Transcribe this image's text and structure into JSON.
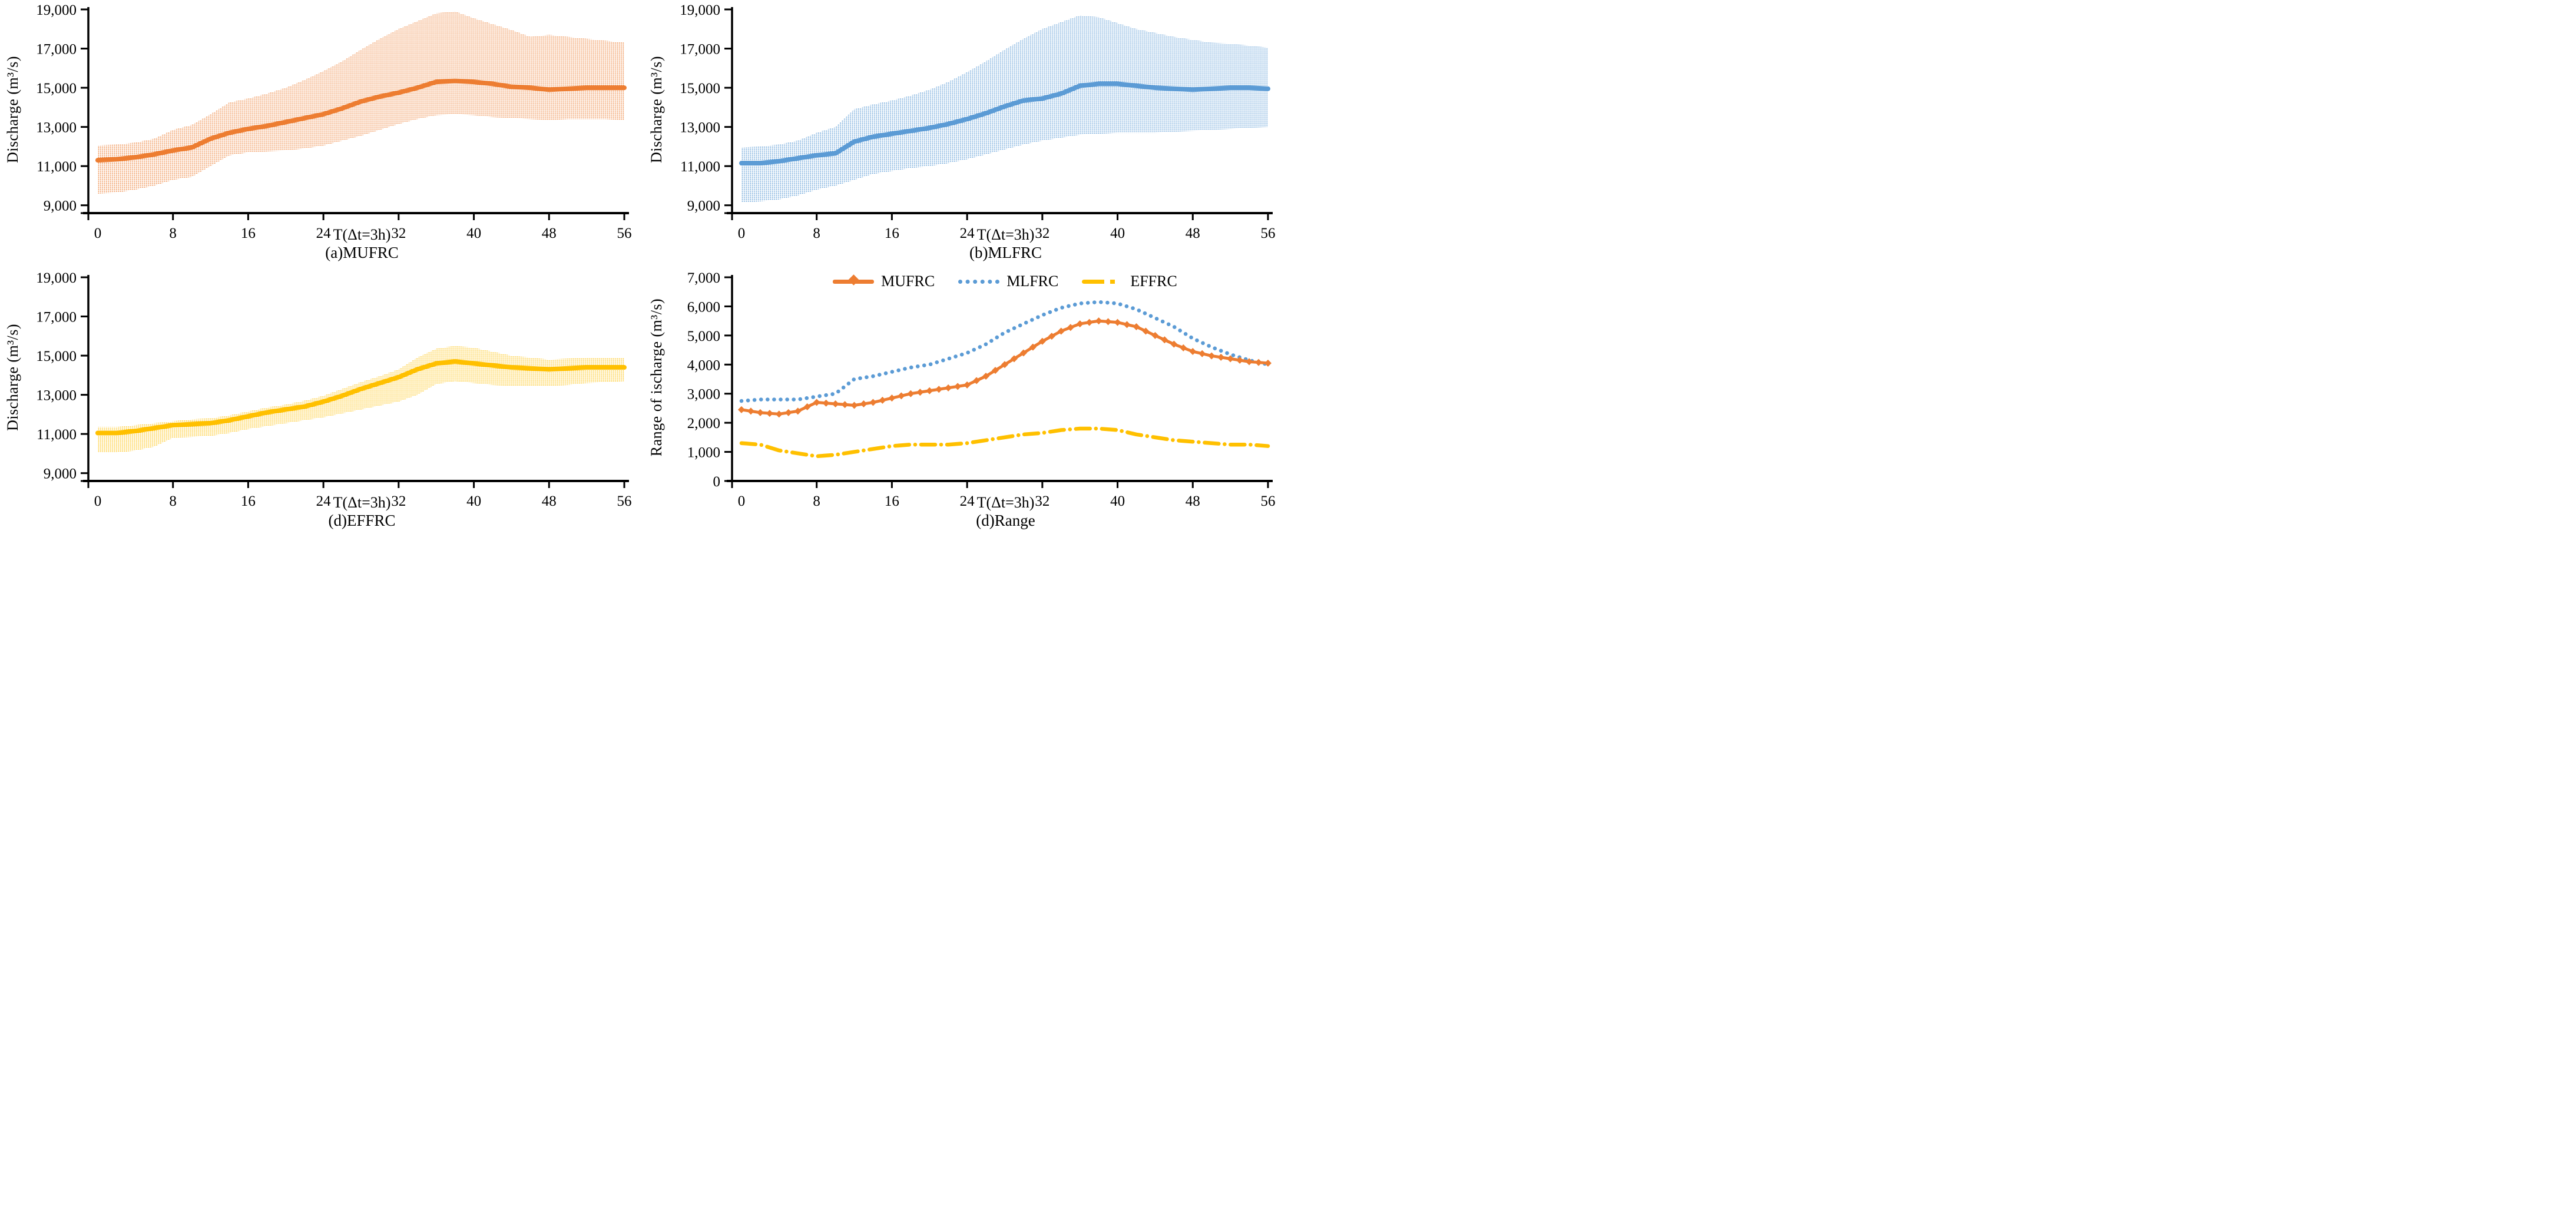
{
  "page": {
    "background": "#FFFFFF"
  },
  "colors": {
    "mufrc_orange": "#ED7D31",
    "mlfrc_blue": "#5B9BD5",
    "effrc_yellow": "#FFC000",
    "axis": "#000000"
  },
  "labels": {
    "x_axis": "T(Δt=3h)",
    "y_axis_discharge": "Discharge (m³/s)",
    "y_axis_range": "Range of ischarge (m³/s)",
    "caption_a": "(a)MUFRC",
    "caption_b": "(b)MLFRC",
    "caption_c": "(d)EFFRC",
    "caption_d": "(d)Range"
  },
  "legend": {
    "items": [
      {
        "label": "MUFRC",
        "series": "mufrc",
        "marker": "orange-solid-line-with-diamond"
      },
      {
        "label": "MLFRC",
        "series": "mlfrc",
        "marker": "blue-dotted-line"
      },
      {
        "label": "EFFRC",
        "series": "effrc",
        "marker": "yellow-dash-dot-line"
      }
    ]
  },
  "chart_data": [
    {
      "panel": "a",
      "type": "area",
      "name": "MUFRC",
      "title": "(a)MUFRC",
      "xlabel": "T(Δt=3h)",
      "ylabel": "Discharge (m³/s)",
      "color": "#ED7D31",
      "band_fill": "dot-pattern",
      "ylim": [
        9000,
        19000
      ],
      "axis_cross_y": 8600,
      "xlim": [
        -1,
        56.5
      ],
      "grid": false,
      "yticks": {
        "values": [
          9000,
          11000,
          13000,
          15000,
          17000,
          19000
        ],
        "labels": [
          "9,000",
          "11,000",
          "13,000",
          "15,000",
          "17,000",
          "19,000"
        ]
      },
      "xticks": {
        "values": [
          0,
          8,
          16,
          24,
          32,
          40,
          48,
          56
        ],
        "labels": [
          "0",
          "8",
          "16",
          "24",
          "32",
          "40",
          "48",
          "56"
        ]
      },
      "x": [
        0,
        2,
        4,
        6,
        8,
        10,
        12,
        14,
        16,
        18,
        20,
        22,
        24,
        26,
        28,
        30,
        32,
        34,
        36,
        38,
        40,
        42,
        44,
        46,
        48,
        50,
        52,
        54,
        56
      ],
      "median": [
        11300,
        11350,
        11450,
        11600,
        11800,
        11950,
        12400,
        12700,
        12900,
        13050,
        13250,
        13450,
        13650,
        13950,
        14300,
        14550,
        14750,
        15000,
        15300,
        15350,
        15300,
        15200,
        15050,
        15000,
        14900,
        14950,
        15000,
        15000,
        15000
      ],
      "upper": [
        12050,
        12100,
        12200,
        12400,
        12850,
        13100,
        13650,
        14250,
        14450,
        14700,
        15000,
        15400,
        15850,
        16350,
        16950,
        17500,
        18000,
        18400,
        18800,
        18900,
        18550,
        18250,
        17950,
        17600,
        17700,
        17600,
        17500,
        17400,
        17300
      ],
      "lower": [
        9600,
        9650,
        9800,
        10000,
        10300,
        10450,
        11000,
        11550,
        11700,
        11750,
        11800,
        11900,
        12050,
        12300,
        12550,
        12850,
        13150,
        13400,
        13600,
        13650,
        13600,
        13500,
        13450,
        13400,
        13350,
        13400,
        13400,
        13400,
        13350
      ]
    },
    {
      "panel": "b",
      "type": "area",
      "name": "MLFRC",
      "title": "(b)MLFRC",
      "xlabel": "T(Δt=3h)",
      "ylabel": "Discharge (m³/s)",
      "color": "#5B9BD5",
      "band_fill": "dot-pattern",
      "ylim": [
        9000,
        19000
      ],
      "axis_cross_y": 8600,
      "xlim": [
        -1,
        56.5
      ],
      "grid": false,
      "yticks": {
        "values": [
          9000,
          11000,
          13000,
          15000,
          17000,
          19000
        ],
        "labels": [
          "9,000",
          "11,000",
          "13,000",
          "15,000",
          "17,000",
          "19,000"
        ]
      },
      "xticks": {
        "values": [
          0,
          8,
          16,
          24,
          32,
          40,
          48,
          56
        ],
        "labels": [
          "0",
          "8",
          "16",
          "24",
          "32",
          "40",
          "48",
          "56"
        ]
      },
      "x": [
        0,
        2,
        4,
        6,
        8,
        10,
        12,
        14,
        16,
        18,
        20,
        22,
        24,
        26,
        28,
        30,
        32,
        34,
        36,
        38,
        40,
        42,
        44,
        46,
        48,
        50,
        52,
        54,
        56
      ],
      "median": [
        11150,
        11150,
        11250,
        11400,
        11550,
        11650,
        12250,
        12500,
        12650,
        12800,
        12950,
        13150,
        13400,
        13700,
        14050,
        14350,
        14450,
        14700,
        15100,
        15200,
        15200,
        15100,
        15000,
        14950,
        14900,
        14950,
        15000,
        15000,
        14950
      ],
      "upper": [
        11950,
        12000,
        12100,
        12300,
        12700,
        13000,
        13900,
        14150,
        14350,
        14600,
        14900,
        15300,
        15800,
        16350,
        16950,
        17500,
        18000,
        18350,
        18700,
        18600,
        18300,
        18000,
        17800,
        17600,
        17450,
        17300,
        17250,
        17150,
        17050
      ],
      "lower": [
        9150,
        9200,
        9300,
        9500,
        9800,
        10000,
        10300,
        10600,
        10750,
        10900,
        11000,
        11150,
        11350,
        11600,
        11850,
        12100,
        12300,
        12450,
        12600,
        12650,
        12700,
        12700,
        12700,
        12750,
        12800,
        12850,
        12900,
        12950,
        13000
      ]
    },
    {
      "panel": "c",
      "type": "area",
      "name": "EFFRC",
      "title": "(d)EFFRC",
      "xlabel": "T(Δt=3h)",
      "ylabel": "Discharge (m³/s)",
      "color": "#FFC000",
      "band_fill": "dot-pattern",
      "ylim": [
        9000,
        19000
      ],
      "axis_cross_y": 8600,
      "xlim": [
        -1,
        56.5
      ],
      "grid": false,
      "yticks": {
        "values": [
          9000,
          11000,
          13000,
          15000,
          17000,
          19000
        ],
        "labels": [
          "9,000",
          "11,000",
          "13,000",
          "15,000",
          "17,000",
          "19,000"
        ]
      },
      "xticks": {
        "values": [
          0,
          8,
          16,
          24,
          32,
          40,
          48,
          56
        ],
        "labels": [
          "0",
          "8",
          "16",
          "24",
          "32",
          "40",
          "48",
          "56"
        ]
      },
      "x": [
        0,
        2,
        4,
        6,
        8,
        10,
        12,
        14,
        16,
        18,
        20,
        22,
        24,
        26,
        28,
        30,
        32,
        34,
        36,
        38,
        40,
        42,
        44,
        46,
        48,
        50,
        52,
        54,
        56
      ],
      "median": [
        11050,
        11050,
        11150,
        11300,
        11450,
        11500,
        11550,
        11700,
        11900,
        12100,
        12250,
        12400,
        12650,
        12950,
        13300,
        13600,
        13900,
        14300,
        14600,
        14700,
        14600,
        14500,
        14400,
        14350,
        14300,
        14350,
        14400,
        14400,
        14400
      ],
      "upper": [
        11350,
        11350,
        11450,
        11550,
        11650,
        11750,
        11800,
        11950,
        12150,
        12350,
        12500,
        12700,
        12950,
        13300,
        13650,
        13950,
        14300,
        14900,
        15350,
        15500,
        15400,
        15200,
        15000,
        14900,
        14800,
        14850,
        14900,
        14900,
        14900
      ],
      "lower": [
        10050,
        10050,
        10150,
        10350,
        10800,
        10850,
        10900,
        11050,
        11250,
        11400,
        11550,
        11700,
        11850,
        12050,
        12250,
        12450,
        12650,
        13000,
        13550,
        13700,
        13600,
        13500,
        13450,
        13450,
        13450,
        13500,
        13600,
        13650,
        13700
      ]
    },
    {
      "panel": "d",
      "type": "line",
      "title": "(d)Range",
      "xlabel": "T(Δt=3h)",
      "ylabel": "Range of ischarge (m³/s)",
      "ylim": [
        0,
        7000
      ],
      "axis_cross_y": 0,
      "xlim": [
        -1,
        56.5
      ],
      "grid": false,
      "legend_position": "top-center",
      "yticks": {
        "values": [
          0,
          1000,
          2000,
          3000,
          4000,
          5000,
          6000,
          7000
        ],
        "labels": [
          "0",
          "1,000",
          "2,000",
          "3,000",
          "4,000",
          "5,000",
          "6,000",
          "7,000"
        ]
      },
      "xticks": {
        "values": [
          0,
          8,
          16,
          24,
          32,
          40,
          48,
          56
        ],
        "labels": [
          "0",
          "8",
          "16",
          "24",
          "32",
          "40",
          "48",
          "56"
        ]
      },
      "x": [
        0,
        2,
        4,
        6,
        8,
        10,
        12,
        14,
        16,
        18,
        20,
        22,
        24,
        26,
        28,
        30,
        32,
        34,
        36,
        38,
        40,
        42,
        44,
        46,
        48,
        50,
        52,
        54,
        56
      ],
      "series": [
        {
          "name": "MUFRC",
          "color": "#ED7D31",
          "style": "solid-diamond",
          "values": [
            2450,
            2350,
            2300,
            2400,
            2700,
            2650,
            2600,
            2700,
            2850,
            3000,
            3100,
            3200,
            3300,
            3600,
            4000,
            4400,
            4800,
            5150,
            5400,
            5500,
            5450,
            5300,
            5000,
            4700,
            4450,
            4300,
            4200,
            4100,
            4050
          ]
        },
        {
          "name": "MLFRC",
          "color": "#5B9BD5",
          "style": "dotted",
          "values": [
            2750,
            2800,
            2800,
            2800,
            2900,
            3000,
            3500,
            3600,
            3750,
            3900,
            4000,
            4200,
            4400,
            4700,
            5100,
            5400,
            5700,
            5950,
            6100,
            6150,
            6100,
            5900,
            5600,
            5300,
            4900,
            4600,
            4350,
            4150,
            4000
          ]
        },
        {
          "name": "EFFRC",
          "color": "#FFC000",
          "style": "dashdot",
          "values": [
            1300,
            1250,
            1050,
            950,
            850,
            900,
            1000,
            1100,
            1200,
            1250,
            1250,
            1250,
            1300,
            1400,
            1500,
            1600,
            1650,
            1750,
            1800,
            1800,
            1750,
            1600,
            1500,
            1400,
            1350,
            1300,
            1250,
            1250,
            1200
          ]
        }
      ]
    }
  ]
}
